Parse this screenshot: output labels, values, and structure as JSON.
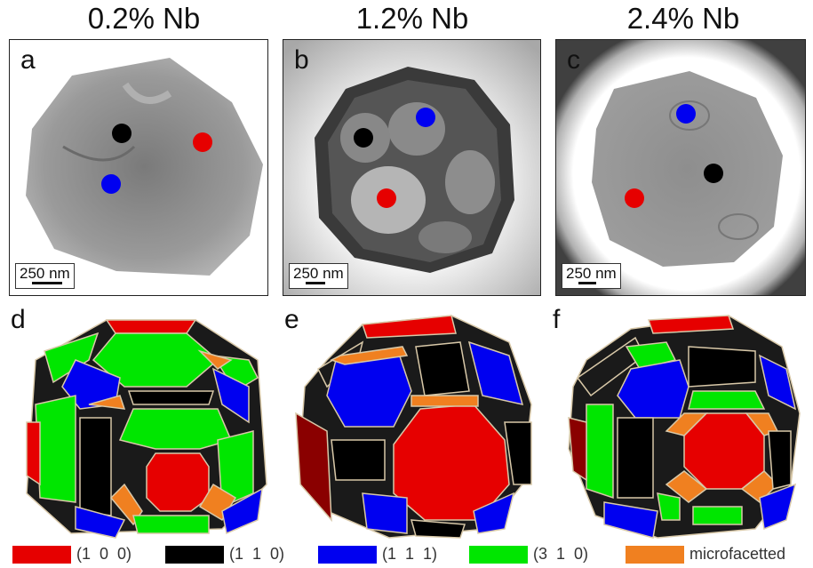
{
  "titles": [
    "0.2% Nb",
    "1.2% Nb",
    "2.4% Nb"
  ],
  "letters": [
    "a",
    "b",
    "c",
    "d",
    "e",
    "f"
  ],
  "scalebar": "250 nm",
  "legend": [
    {
      "label": "(1  0  0)",
      "color": "#e60000"
    },
    {
      "label": "(1  1  0)",
      "color": "#000000"
    },
    {
      "label": "(1  1  1)",
      "color": "#0000f0"
    },
    {
      "label": "(3  1  0)",
      "color": "#00e600"
    },
    {
      "label": "microfacetted",
      "color": "#f08020"
    }
  ],
  "colors": {
    "red": "#e60000",
    "black": "#000000",
    "blue": "#0000f0",
    "green": "#00e600",
    "orange": "#f08020"
  }
}
